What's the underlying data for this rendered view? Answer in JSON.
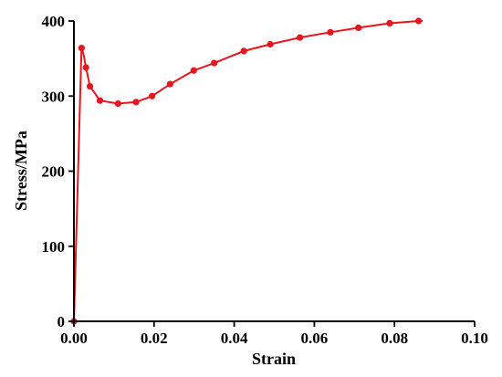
{
  "chart_data": {
    "type": "line",
    "title": "",
    "xlabel": "Strain",
    "ylabel": "Stress/MPa",
    "xlim": [
      0,
      0.1
    ],
    "ylim": [
      0,
      400
    ],
    "xticks": [
      0.0,
      0.02,
      0.04,
      0.06,
      0.08,
      0.1
    ],
    "xtick_labels": [
      "0.00",
      "0.02",
      "0.04",
      "0.06",
      "0.08",
      "0.10"
    ],
    "yticks": [
      0,
      100,
      200,
      300,
      400
    ],
    "ytick_labels": [
      "0",
      "100",
      "200",
      "300",
      "400"
    ],
    "grid": false,
    "legend": "none",
    "series": [
      {
        "color": "#e8141e",
        "line": [
          [
            0.0,
            0
          ],
          [
            0.0019,
            364
          ],
          [
            0.0024,
            356
          ],
          [
            0.003,
            338
          ],
          [
            0.004,
            313
          ],
          [
            0.0065,
            294
          ],
          [
            0.011,
            290
          ],
          [
            0.0155,
            292
          ],
          [
            0.0195,
            300
          ],
          [
            0.024,
            316
          ],
          [
            0.0299,
            334
          ],
          [
            0.035,
            344
          ],
          [
            0.0424,
            360
          ],
          [
            0.049,
            369
          ],
          [
            0.0564,
            378
          ],
          [
            0.064,
            385
          ],
          [
            0.071,
            391
          ],
          [
            0.0788,
            397
          ],
          [
            0.086,
            400
          ],
          [
            0.087,
            400
          ]
        ],
        "markers": [
          [
            0.0,
            0
          ],
          [
            0.0019,
            364
          ],
          [
            0.003,
            338
          ],
          [
            0.004,
            313
          ],
          [
            0.0065,
            294
          ],
          [
            0.011,
            290
          ],
          [
            0.0155,
            292
          ],
          [
            0.0195,
            300
          ],
          [
            0.024,
            316
          ],
          [
            0.0299,
            334
          ],
          [
            0.035,
            344
          ],
          [
            0.0424,
            360
          ],
          [
            0.049,
            369
          ],
          [
            0.0564,
            378
          ],
          [
            0.064,
            385
          ],
          [
            0.071,
            391
          ],
          [
            0.0788,
            397
          ],
          [
            0.086,
            400
          ]
        ]
      }
    ]
  }
}
